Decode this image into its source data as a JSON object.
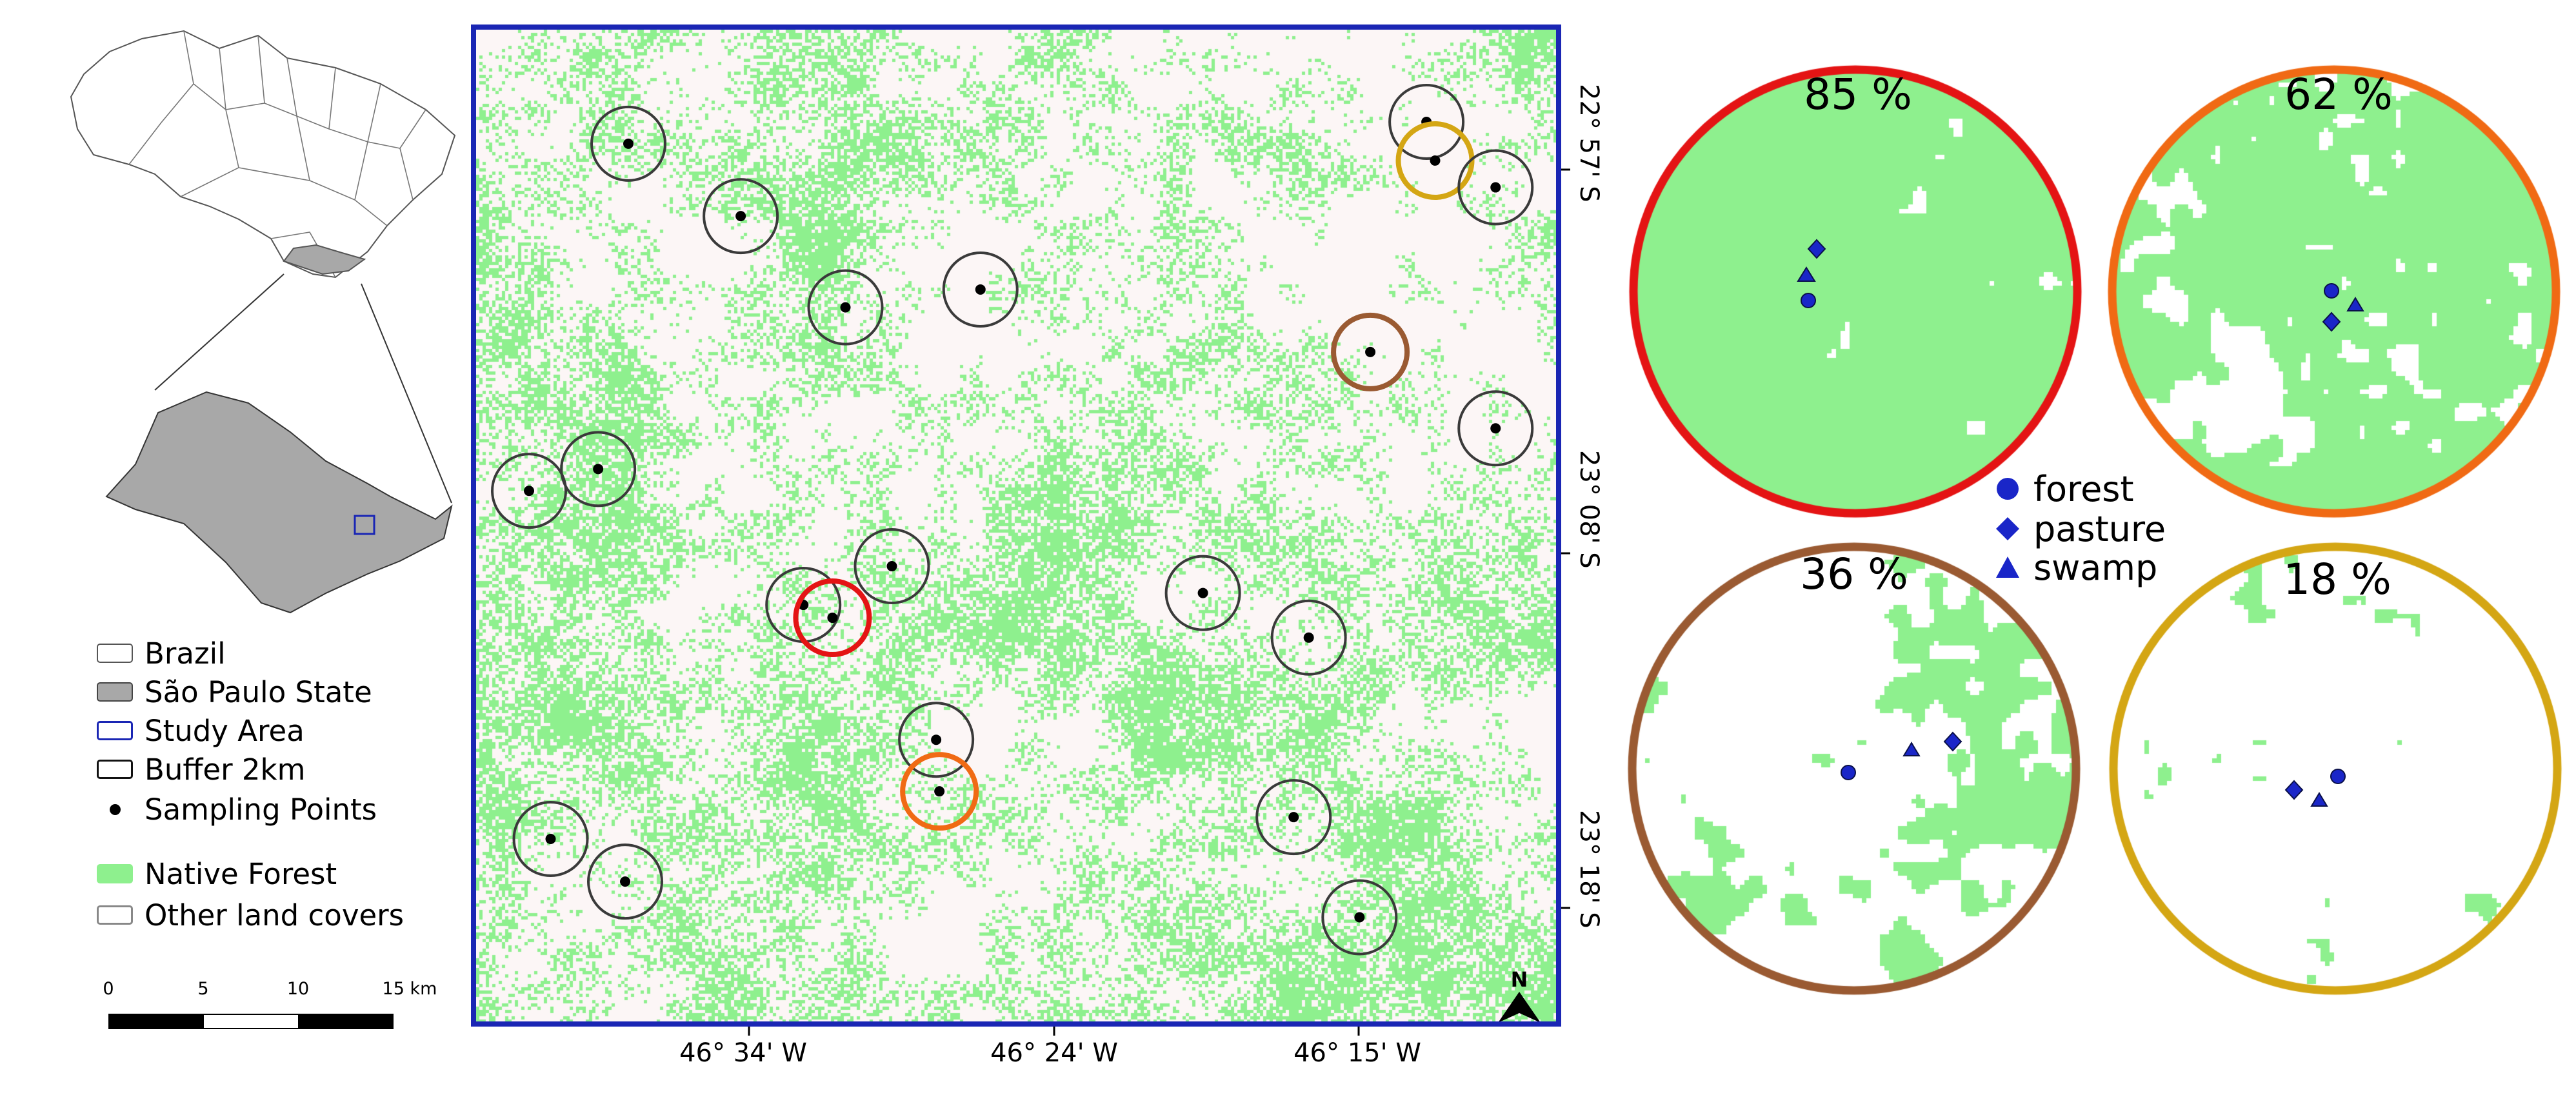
{
  "colors": {
    "forest": "#8ef08e",
    "background": "#fcf6f6",
    "frame": "#1a26b4",
    "state_gray": "#a8a8a8",
    "marker_blue": "#1a26c8",
    "buffer_dark": "#3a3a3a",
    "ring_85": "#e41414",
    "ring_62": "#f06a14",
    "ring_36": "#9a5a32",
    "ring_18": "#d4a614"
  },
  "inset_legend": {
    "items": [
      {
        "label": "Brazil",
        "swatch": "outline-white"
      },
      {
        "label": "São Paulo State",
        "swatch": "fill-gray"
      },
      {
        "label": "Study Area",
        "swatch": "outline-blue"
      },
      {
        "label": "Buffer 2km",
        "swatch": "outline-black"
      },
      {
        "label": "Sampling Points",
        "swatch": "dot"
      },
      {
        "label": "Native Forest",
        "swatch": "fill-green"
      },
      {
        "label": "Other land covers",
        "swatch": "outline-gray"
      }
    ]
  },
  "scale_bar": {
    "ticks": [
      "0",
      "5",
      "10",
      "15 km"
    ]
  },
  "map": {
    "lon_labels": [
      "46° 34' W",
      "46° 24' W",
      "46° 15' W"
    ],
    "lat_labels": [
      "22° 57' S",
      "23° 08' S",
      "23° 18' S"
    ],
    "north_label": "N",
    "buffers": [
      {
        "u": 0.141,
        "v": 0.115,
        "ring": "dark"
      },
      {
        "u": 0.245,
        "v": 0.188,
        "ring": "dark"
      },
      {
        "u": 0.342,
        "v": 0.28,
        "ring": "dark"
      },
      {
        "u": 0.467,
        "v": 0.262,
        "ring": "dark"
      },
      {
        "u": 0.88,
        "v": 0.093,
        "ring": "dark"
      },
      {
        "u": 0.888,
        "v": 0.132,
        "ring": "gold"
      },
      {
        "u": 0.944,
        "v": 0.159,
        "ring": "dark"
      },
      {
        "u": 0.828,
        "v": 0.325,
        "ring": "brown"
      },
      {
        "u": 0.944,
        "v": 0.402,
        "ring": "dark"
      },
      {
        "u": 0.049,
        "v": 0.465,
        "ring": "dark"
      },
      {
        "u": 0.113,
        "v": 0.443,
        "ring": "dark"
      },
      {
        "u": 0.385,
        "v": 0.541,
        "ring": "dark"
      },
      {
        "u": 0.303,
        "v": 0.58,
        "ring": "dark"
      },
      {
        "u": 0.33,
        "v": 0.593,
        "ring": "red"
      },
      {
        "u": 0.673,
        "v": 0.568,
        "ring": "dark"
      },
      {
        "u": 0.771,
        "v": 0.613,
        "ring": "dark"
      },
      {
        "u": 0.426,
        "v": 0.716,
        "ring": "dark"
      },
      {
        "u": 0.429,
        "v": 0.768,
        "ring": "orange"
      },
      {
        "u": 0.757,
        "v": 0.794,
        "ring": "dark"
      },
      {
        "u": 0.069,
        "v": 0.816,
        "ring": "dark"
      },
      {
        "u": 0.138,
        "v": 0.859,
        "ring": "dark"
      },
      {
        "u": 0.818,
        "v": 0.895,
        "ring": "dark"
      }
    ]
  },
  "circles": [
    {
      "label": "85 %",
      "forest_fraction": 0.85,
      "ring": "ring_85"
    },
    {
      "label": "62 %",
      "forest_fraction": 0.62,
      "ring": "ring_62"
    },
    {
      "label": "36 %",
      "forest_fraction": 0.36,
      "ring": "ring_36"
    },
    {
      "label": "18 %",
      "forest_fraction": 0.18,
      "ring": "ring_18"
    }
  ],
  "symbol_legend": {
    "items": [
      {
        "label": "forest",
        "shape": "circle"
      },
      {
        "label": "pasture",
        "shape": "diamond"
      },
      {
        "label": "swamp",
        "shape": "triangle"
      }
    ]
  }
}
